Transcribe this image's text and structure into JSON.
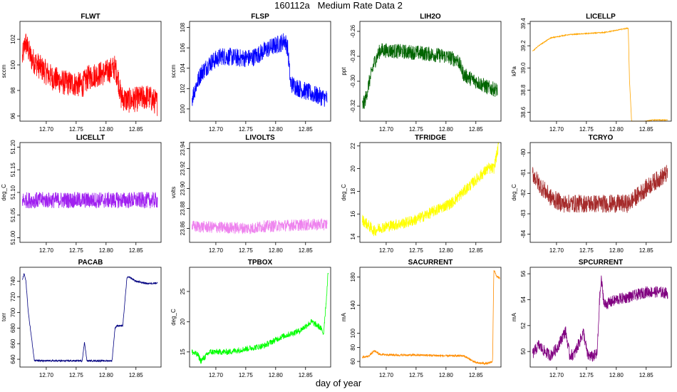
{
  "title": "160112a   Medium Rate Data 2",
  "xlabel": "day of year",
  "chart_data": [
    {
      "type": "line",
      "title": "FLWT",
      "ylabel": "sccm",
      "color": "#ff0000",
      "xlim": [
        12.656,
        12.892
      ],
      "ylim": [
        95.6,
        103.4
      ],
      "xticks": [
        "12.70",
        "12.75",
        "12.80",
        "12.85"
      ],
      "yticks": [
        "96",
        "98",
        "100",
        "102"
      ],
      "series": [
        {
          "x": [
            12.66,
            12.665,
            12.675,
            12.69,
            12.71,
            12.73,
            12.75,
            12.76,
            12.77,
            12.78,
            12.8,
            12.815,
            12.82,
            12.825,
            12.835,
            12.85,
            12.87,
            12.886
          ],
          "values": [
            100.5,
            101.8,
            100.5,
            99.8,
            99.0,
            98.6,
            98.5,
            98.4,
            99.0,
            99.2,
            99.4,
            99.8,
            99.0,
            97.5,
            97.2,
            97.3,
            97.5,
            97.0
          ]
        }
      ],
      "noise": 1.0
    },
    {
      "type": "line",
      "title": "FLSP",
      "ylabel": "sccm",
      "color": "#0000ff",
      "xlim": [
        12.656,
        12.892
      ],
      "ylim": [
        98.8,
        108.6
      ],
      "xticks": [
        "12.70",
        "12.75",
        "12.80",
        "12.85"
      ],
      "yticks": [
        "100",
        "102",
        "104",
        "106",
        "108"
      ],
      "series": [
        {
          "x": [
            12.66,
            12.665,
            12.675,
            12.69,
            12.71,
            12.74,
            12.76,
            12.775,
            12.79,
            12.81,
            12.815,
            12.82,
            12.825,
            12.84,
            12.86,
            12.886
          ],
          "values": [
            101.0,
            102.0,
            103.5,
            104.5,
            105.2,
            105.0,
            105.0,
            105.5,
            106.0,
            106.5,
            106.8,
            106.0,
            102.5,
            102.0,
            101.5,
            101.0
          ]
        }
      ],
      "noise": 0.9
    },
    {
      "type": "line",
      "title": "LIH2O",
      "ylabel": "ppt",
      "color": "#006400",
      "xlim": [
        12.656,
        12.892
      ],
      "ylim": [
        -0.332,
        -0.252
      ],
      "xticks": [
        "12.70",
        "12.75",
        "12.80",
        "12.85"
      ],
      "yticks": [
        "-0.32",
        "-0.30",
        "-0.28",
        "-0.26"
      ],
      "series": [
        {
          "x": [
            12.66,
            12.665,
            12.672,
            12.68,
            12.69,
            12.72,
            12.75,
            12.77,
            12.8,
            12.82,
            12.83,
            12.85,
            12.87,
            12.886
          ],
          "values": [
            -0.32,
            -0.315,
            -0.3,
            -0.285,
            -0.275,
            -0.276,
            -0.277,
            -0.278,
            -0.28,
            -0.283,
            -0.295,
            -0.3,
            -0.305,
            -0.307
          ]
        }
      ],
      "noise": 0.006
    },
    {
      "type": "line",
      "title": "LICELLP",
      "ylabel": "kPa",
      "color": "#ffa500",
      "xlim": [
        12.656,
        12.892
      ],
      "ylim": [
        38.52,
        39.42
      ],
      "xticks": [
        "12.70",
        "12.75",
        "12.80",
        "12.85"
      ],
      "yticks": [
        "38.6",
        "38.8",
        "39.0",
        "39.2",
        "39.4"
      ],
      "series": [
        {
          "x": [
            12.66,
            12.67,
            12.69,
            12.72,
            12.75,
            12.78,
            12.8,
            12.82,
            12.822,
            12.826,
            12.84,
            12.86,
            12.886
          ],
          "values": [
            39.15,
            39.2,
            39.27,
            39.3,
            39.31,
            39.32,
            39.34,
            39.36,
            38.9,
            38.48,
            38.51,
            38.53,
            38.53
          ]
        }
      ],
      "noise": 0.004
    },
    {
      "type": "line",
      "title": "LICELLT",
      "ylabel": "deg_C",
      "color": "#a020f0",
      "xlim": [
        12.656,
        12.892
      ],
      "ylim": [
        50.99,
        51.21
      ],
      "xticks": [
        "12.70",
        "12.75",
        "12.80",
        "12.85"
      ],
      "yticks": [
        "51.00",
        "51.05",
        "51.10",
        "51.15",
        "51.20"
      ],
      "series": [
        {
          "x": [
            12.66,
            12.886
          ],
          "values": [
            51.083,
            51.083
          ]
        }
      ],
      "noise": 0.018
    },
    {
      "type": "line",
      "title": "LIVOLTS",
      "ylabel": "volts",
      "color": "#ee82ee",
      "xlim": [
        12.656,
        12.892
      ],
      "ylim": [
        23.846,
        23.946
      ],
      "xticks": [
        "12.70",
        "12.75",
        "12.80",
        "12.85"
      ],
      "yticks": [
        "23.86",
        "23.88",
        "23.90",
        "23.92",
        "23.94"
      ],
      "series": [
        {
          "x": [
            12.66,
            12.7,
            12.76,
            12.78,
            12.82,
            12.886
          ],
          "values": [
            23.862,
            23.861,
            23.86,
            23.862,
            23.863,
            23.864
          ]
        }
      ],
      "noise": 0.006
    },
    {
      "type": "line",
      "title": "TFRIDGE",
      "ylabel": "deg_C",
      "color": "#ffff00",
      "xlim": [
        12.656,
        12.892
      ],
      "ylim": [
        13.5,
        22.3
      ],
      "xticks": [
        "12.70",
        "12.75",
        "12.80",
        "12.85"
      ],
      "yticks": [
        "14",
        "16",
        "18",
        "20",
        "22"
      ],
      "series": [
        {
          "x": [
            12.66,
            12.67,
            12.68,
            12.69,
            12.71,
            12.73,
            12.75,
            12.77,
            12.79,
            12.81,
            12.83,
            12.85,
            12.87,
            12.88,
            12.888
          ],
          "values": [
            15.5,
            15.0,
            14.5,
            14.8,
            15.0,
            15.2,
            15.5,
            16.0,
            16.5,
            17.0,
            18.0,
            19.0,
            20.0,
            20.0,
            22.0
          ]
        }
      ],
      "noise": 0.5
    },
    {
      "type": "line",
      "title": "TCRYO",
      "ylabel": "deg_C",
      "color": "#a52a2a",
      "xlim": [
        12.656,
        12.892
      ],
      "ylim": [
        -84.4,
        -79.5
      ],
      "xticks": [
        "12.70",
        "12.75",
        "12.80",
        "12.85"
      ],
      "yticks": [
        "-84",
        "-83",
        "-82",
        "-81",
        "-80"
      ],
      "series": [
        {
          "x": [
            12.66,
            12.67,
            12.69,
            12.71,
            12.75,
            12.8,
            12.82,
            12.84,
            12.86,
            12.886
          ],
          "values": [
            -81.0,
            -81.5,
            -82.2,
            -82.5,
            -82.5,
            -82.5,
            -82.5,
            -82.0,
            -81.5,
            -81.0
          ]
        }
      ],
      "noise": 0.45
    },
    {
      "type": "line",
      "title": "PACAB",
      "ylabel": "torr",
      "color": "#000080",
      "xlim": [
        12.656,
        12.892
      ],
      "ylim": [
        630,
        758
      ],
      "xticks": [
        "12.70",
        "12.75",
        "12.80",
        "12.85"
      ],
      "yticks": [
        "640",
        "660",
        "680",
        "700",
        "720",
        "740"
      ],
      "series": [
        {
          "x": [
            12.66,
            12.663,
            12.666,
            12.67,
            12.68,
            12.69,
            12.72,
            12.76,
            12.764,
            12.768,
            12.8,
            12.81,
            12.815,
            12.818,
            12.828,
            12.835,
            12.84,
            12.85,
            12.87,
            12.886
          ],
          "values": [
            742,
            750,
            740,
            700,
            639,
            638,
            638,
            638,
            662,
            638,
            638,
            638,
            680,
            683,
            683,
            745,
            745,
            740,
            737,
            738
          ]
        }
      ],
      "noise": 1.0
    },
    {
      "type": "line",
      "title": "TPBOX",
      "ylabel": "deg_C",
      "color": "#00ff00",
      "xlim": [
        12.656,
        12.892
      ],
      "ylim": [
        12.5,
        29.0
      ],
      "xticks": [
        "12.70",
        "12.75",
        "12.80",
        "12.85"
      ],
      "yticks": [
        "15",
        "20",
        "25"
      ],
      "series": [
        {
          "x": [
            12.66,
            12.67,
            12.675,
            12.69,
            12.72,
            12.75,
            12.78,
            12.81,
            12.84,
            12.86,
            12.875,
            12.88,
            12.885,
            12.888
          ],
          "values": [
            15.0,
            14.5,
            13.5,
            15.0,
            15.0,
            15.5,
            16.0,
            17.5,
            18.5,
            20.0,
            19.0,
            18.0,
            24.0,
            28.5
          ]
        }
      ],
      "noise": 0.5
    },
    {
      "type": "line",
      "title": "SACURRENT",
      "ylabel": "mA",
      "color": "#ff8c00",
      "xlim": [
        12.656,
        12.892
      ],
      "ylim": [
        52,
        194
      ],
      "xticks": [
        "12.70",
        "12.75",
        "12.80",
        "12.85"
      ],
      "yticks": [
        "60",
        "80",
        "100",
        "140",
        "180"
      ],
      "series": [
        {
          "x": [
            12.66,
            12.67,
            12.68,
            12.69,
            12.72,
            12.76,
            12.8,
            12.83,
            12.84,
            12.85,
            12.87,
            12.878,
            12.88,
            12.885,
            12.89
          ],
          "values": [
            66,
            67,
            75,
            70,
            69,
            69,
            68,
            68,
            63,
            58,
            57,
            60,
            190,
            181,
            178
          ]
        }
      ],
      "noise": 1.5
    },
    {
      "type": "line",
      "title": "SPCURRENT",
      "ylabel": "mA",
      "color": "#800080",
      "xlim": [
        12.656,
        12.892
      ],
      "ylim": [
        48.8,
        56.5
      ],
      "xticks": [
        "12.70",
        "12.75",
        "12.80",
        "12.85"
      ],
      "yticks": [
        "50",
        "52",
        "54",
        "56"
      ],
      "series": [
        {
          "x": [
            12.66,
            12.67,
            12.68,
            12.69,
            12.7,
            12.715,
            12.722,
            12.73,
            12.745,
            12.752,
            12.76,
            12.768,
            12.772,
            12.775,
            12.78,
            12.8,
            12.83,
            12.85,
            12.87,
            12.886
          ],
          "values": [
            49.8,
            50.5,
            50.0,
            49.7,
            50.2,
            51.6,
            49.7,
            49.8,
            51.5,
            49.7,
            49.6,
            49.8,
            54.0,
            55.5,
            53.6,
            54.0,
            54.3,
            54.6,
            54.6,
            54.5
          ]
        }
      ],
      "noise": 0.45
    }
  ]
}
